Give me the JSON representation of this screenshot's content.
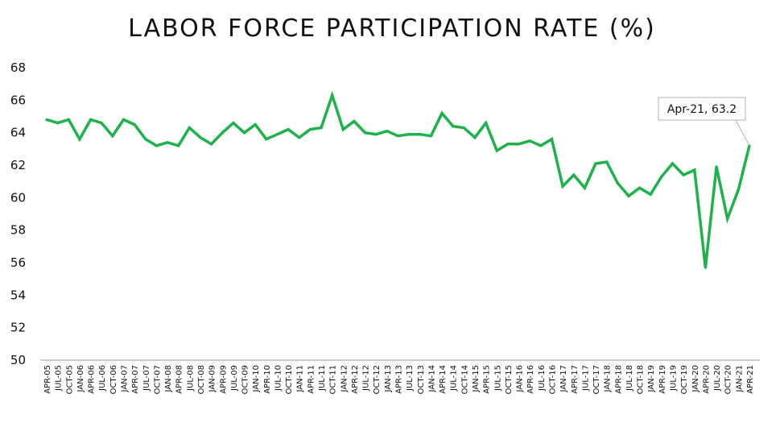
{
  "chart_data": {
    "type": "line",
    "title": "LABOR FORCE PARTICIPATION RATE (%)",
    "xlabel": "",
    "ylabel": "",
    "ylim": [
      50,
      68
    ],
    "yticks": [
      50,
      52,
      54,
      56,
      58,
      60,
      62,
      64,
      66,
      68
    ],
    "grid": false,
    "line_color": "#1db34a",
    "x": [
      "APR-05",
      "JUL-05",
      "OCT-05",
      "JAN-06",
      "APR-06",
      "JUL-06",
      "OCT-06",
      "JAN-07",
      "APR-07",
      "JUL-07",
      "OCT-07",
      "JAN-08",
      "APR-08",
      "JUL-08",
      "OCT-08",
      "JAN-09",
      "APR-09",
      "JUL-09",
      "OCT-09",
      "JAN-10",
      "APR-10",
      "JUL-10",
      "OCT-10",
      "JAN-11",
      "APR-11",
      "JUL-11",
      "OCT-11",
      "JAN-12",
      "APR-12",
      "JUL-12",
      "OCT-12",
      "JAN-13",
      "APR-13",
      "JUL-13",
      "OCT-13",
      "JAN-14",
      "APR-14",
      "JUL-14",
      "OCT-14",
      "JAN-15",
      "APR-15",
      "JUL-15",
      "OCT-15",
      "JAN-16",
      "APR-16",
      "JUL-16",
      "OCT-16",
      "JAN-17",
      "APR-17",
      "JUL-17",
      "OCT-17",
      "JAN-18",
      "APR-18",
      "JUL-18",
      "OCT-18",
      "JAN-19",
      "APR-19",
      "JUL-19",
      "OCT-19",
      "JAN-20",
      "APR-20",
      "JUL-20",
      "OCT-20",
      "JAN-21",
      "APR-21"
    ],
    "values": [
      64.8,
      64.6,
      64.8,
      63.6,
      64.8,
      64.6,
      63.8,
      64.8,
      64.5,
      63.6,
      63.2,
      63.4,
      63.2,
      64.3,
      63.7,
      63.3,
      64.0,
      64.6,
      64.0,
      64.5,
      63.6,
      63.9,
      64.2,
      63.7,
      64.2,
      64.3,
      66.3,
      64.2,
      64.7,
      64.0,
      63.9,
      64.1,
      63.8,
      63.9,
      63.9,
      63.8,
      65.2,
      64.4,
      64.3,
      63.7,
      64.6,
      62.9,
      63.3,
      63.3,
      63.5,
      63.2,
      63.6,
      60.7,
      61.4,
      60.6,
      62.1,
      62.2,
      60.9,
      60.1,
      60.6,
      60.2,
      61.3,
      62.1,
      61.4,
      61.7,
      55.7,
      61.9,
      58.7,
      60.5,
      63.2
    ],
    "annotation": "Apr-21, 63.2"
  }
}
